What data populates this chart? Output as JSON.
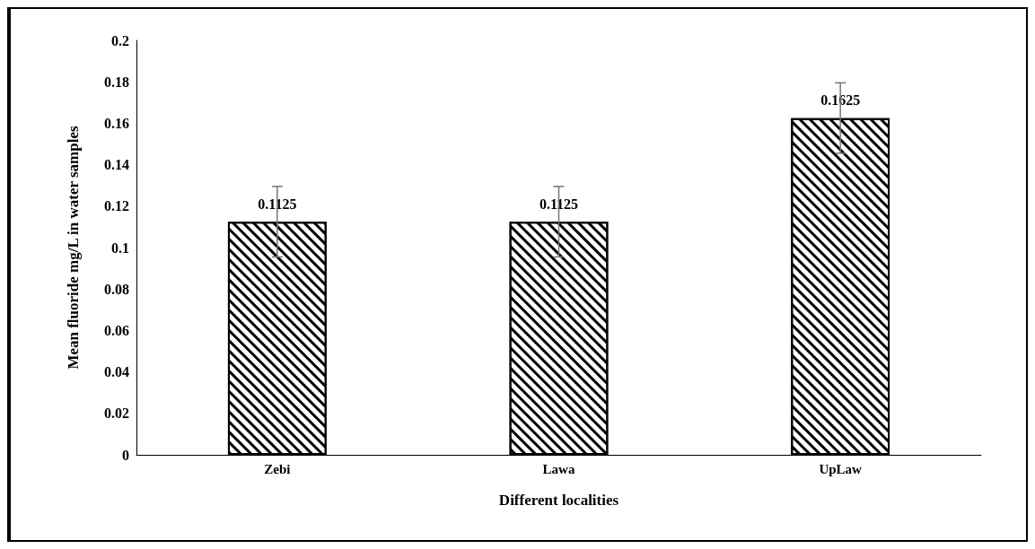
{
  "chart_data": {
    "type": "bar",
    "xlabel": "Different localities",
    "ylabel": "Mean fluoride mg/L in water samples",
    "categories": [
      "Zebi",
      "Lawa",
      "UpLaw"
    ],
    "values": [
      0.1125,
      0.1125,
      0.1625
    ],
    "errors": [
      0.017,
      0.017,
      0.017
    ],
    "color": "#000000",
    "data_labels": true,
    "ylim": [
      0,
      0.2
    ],
    "yticks": [
      0,
      0.02,
      0.04,
      0.06,
      0.08,
      0.1,
      0.12,
      0.14,
      0.16,
      0.18,
      0.2
    ],
    "grid": false
  }
}
